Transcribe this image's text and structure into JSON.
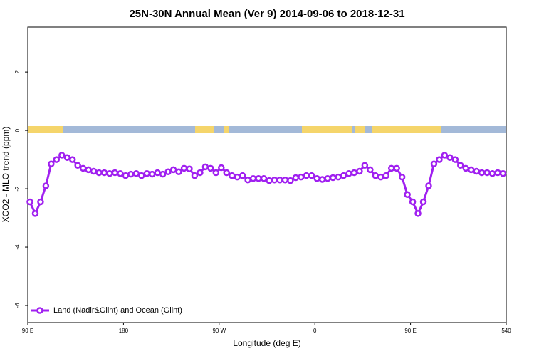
{
  "chart_data": {
    "type": "line",
    "title": "25N-30N Annual Mean (Ver 9)   2014-09-06 to 2018-12-31",
    "x_label": "Longitude (deg E)",
    "y_label": "XCO2 - MLO trend (ppm)",
    "xlim": [
      90,
      540
    ],
    "ylim": [
      -6.585,
      3.54
    ],
    "xticks": [
      {
        "value": 90,
        "label": "90 E"
      },
      180,
      {
        "value": 270,
        "label": "90 W"
      },
      {
        "value": 360,
        "label": "0"
      },
      {
        "value": 450,
        "label": "90 E"
      },
      540
    ],
    "yticks": [
      -6,
      -4,
      -2,
      0,
      2
    ],
    "legend_position": "bottom-left",
    "x": [
      92,
      97,
      102,
      107,
      112,
      117,
      122,
      127,
      132,
      137,
      142,
      147,
      152,
      157,
      162,
      167,
      172,
      177,
      182,
      187,
      192,
      197,
      202,
      207,
      212,
      217,
      222,
      227,
      232,
      237,
      242,
      247,
      252,
      257,
      262,
      267,
      272,
      277,
      282,
      287,
      292,
      297,
      302,
      307,
      312,
      317,
      322,
      327,
      332,
      337,
      342,
      347,
      352,
      357,
      362,
      367,
      372,
      377,
      382,
      387,
      392,
      397,
      402,
      407,
      412,
      417,
      422,
      427,
      432,
      437,
      442,
      447,
      452,
      457,
      462,
      467,
      472,
      477,
      482,
      487,
      492,
      497,
      502,
      507,
      512,
      517,
      522,
      527,
      532,
      537
    ],
    "series": [
      {
        "name": "Land (Nadir&Glint) and Ocean (Glint)",
        "color": "#a020f0",
        "values": [
          -2.45,
          -2.85,
          -2.45,
          -1.9,
          -1.15,
          -1.0,
          -0.85,
          -0.93,
          -1.0,
          -1.2,
          -1.3,
          -1.35,
          -1.4,
          -1.45,
          -1.45,
          -1.48,
          -1.45,
          -1.48,
          -1.55,
          -1.5,
          -1.48,
          -1.55,
          -1.48,
          -1.5,
          -1.45,
          -1.5,
          -1.42,
          -1.35,
          -1.42,
          -1.3,
          -1.32,
          -1.55,
          -1.45,
          -1.25,
          -1.3,
          -1.45,
          -1.28,
          -1.45,
          -1.55,
          -1.6,
          -1.55,
          -1.7,
          -1.65,
          -1.65,
          -1.65,
          -1.72,
          -1.7,
          -1.7,
          -1.7,
          -1.72,
          -1.62,
          -1.6,
          -1.55,
          -1.55,
          -1.65,
          -1.68,
          -1.65,
          -1.62,
          -1.6,
          -1.55,
          -1.48,
          -1.45,
          -1.4,
          -1.2,
          -1.35,
          -1.55,
          -1.6,
          -1.55,
          -1.3,
          -1.3,
          -1.6,
          -2.2,
          -2.45,
          -2.85,
          -2.45,
          -1.9,
          -1.15,
          -1.0,
          -0.85,
          -0.93,
          -1.0,
          -1.2,
          -1.3,
          -1.35,
          -1.4,
          -1.45,
          -1.45,
          -1.48,
          -1.45,
          -1.48
        ]
      }
    ]
  }
}
